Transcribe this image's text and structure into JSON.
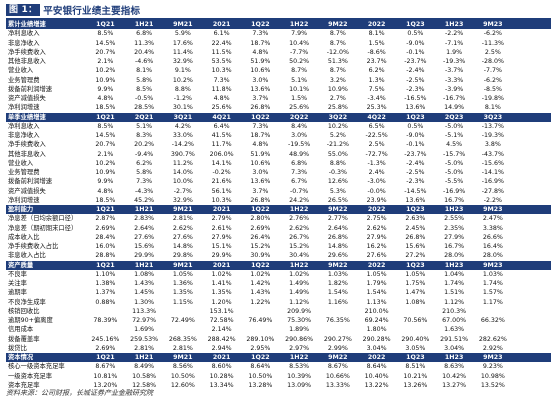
{
  "title": {
    "figure_label": "图 1：",
    "caption": "平安银行业绩主要指标"
  },
  "sections": [
    {
      "header": [
        "累计业绩增速",
        "1Q21",
        "1H21",
        "9M21",
        "2021",
        "1Q22",
        "1H22",
        "9M22",
        "2022",
        "1Q23",
        "1H23",
        "9M23"
      ],
      "rows": [
        {
          "label": "净利息收入",
          "indent": 1,
          "values": [
            "8.5%",
            "6.8%",
            "5.9%",
            "6.1%",
            "7.3%",
            "7.9%",
            "8.7%",
            "8.1%",
            "0.5%",
            "-2.2%",
            "-6.2%"
          ]
        },
        {
          "label": "非息净收入",
          "indent": 1,
          "values": [
            "14.5%",
            "11.3%",
            "17.6%",
            "22.4%",
            "18.7%",
            "10.4%",
            "8.7%",
            "1.5%",
            "-9.0%",
            "-7.1%",
            "-11.3%"
          ]
        },
        {
          "label": "净手续费收入",
          "indent": 2,
          "values": [
            "20.7%",
            "20.4%",
            "11.4%",
            "11.5%",
            "4.8%",
            "-7.7%",
            "-12.0%",
            "-8.6%",
            "-0.1%",
            "1.9%",
            "2.5%"
          ]
        },
        {
          "label": "其他非息收入",
          "indent": 3,
          "values": [
            "2.1%",
            "-4.6%",
            "32.9%",
            "53.5%",
            "51.9%",
            "50.2%",
            "51.3%",
            "23.7%",
            "-23.7%",
            "-19.3%",
            "-28.0%"
          ]
        },
        {
          "label": "营业收入",
          "indent": 1,
          "values": [
            "10.2%",
            "8.1%",
            "9.1%",
            "10.3%",
            "10.6%",
            "8.7%",
            "8.7%",
            "6.2%",
            "-2.4%",
            "-3.7%",
            "-7.7%"
          ]
        },
        {
          "label": "业务管理费",
          "indent": 1,
          "values": [
            "10.9%",
            "5.8%",
            "10.2%",
            "7.3%",
            "3.0%",
            "5.1%",
            "3.2%",
            "1.3%",
            "-2.5%",
            "-3.3%",
            "-6.2%"
          ]
        },
        {
          "label": "拨备前利润增速",
          "indent": 1,
          "values": [
            "9.9%",
            "8.5%",
            "8.8%",
            "11.8%",
            "13.6%",
            "10.1%",
            "10.9%",
            "7.5%",
            "-2.3%",
            "-3.9%",
            "-8.5%"
          ]
        },
        {
          "label": "资产减值损失",
          "indent": 2,
          "values": [
            "4.8%",
            "-0.5%",
            "-1.2%",
            "4.8%",
            "3.7%",
            "1.5%",
            "2.7%",
            "-3.4%",
            "-16.5%",
            "-16.7%",
            "-19.8%"
          ]
        },
        {
          "label": "净利润增速",
          "indent": 1,
          "values": [
            "18.5%",
            "28.5%",
            "30.1%",
            "25.6%",
            "26.8%",
            "25.6%",
            "25.8%",
            "25.3%",
            "13.6%",
            "14.9%",
            "8.1%"
          ]
        }
      ]
    },
    {
      "header": [
        "单季业绩增速",
        "1Q21",
        "2Q21",
        "3Q21",
        "4Q21",
        "1Q22",
        "2Q22",
        "3Q22",
        "4Q22",
        "1Q23",
        "2Q23",
        "3Q23"
      ],
      "rows": [
        {
          "label": "净利息收入",
          "indent": 1,
          "values": [
            "8.5%",
            "5.1%",
            "4.2%",
            "6.4%",
            "7.3%",
            "8.4%",
            "10.2%",
            "6.5%",
            "0.5%",
            "-5.0%",
            "-13.7%"
          ]
        },
        {
          "label": "非息净收入",
          "indent": 1,
          "values": [
            "14.5%",
            "8.3%",
            "33.0%",
            "41.5%",
            "18.7%",
            "3.0%",
            "5.2%",
            "-22.5%",
            "-9.0%",
            "-5.1%",
            "-19.3%"
          ]
        },
        {
          "label": "净手续费收入",
          "indent": 2,
          "values": [
            "20.7%",
            "20.2%",
            "-14.2%",
            "11.7%",
            "4.8%",
            "-19.5%",
            "-21.2%",
            "2.5%",
            "-0.1%",
            "4.5%",
            "3.8%"
          ]
        },
        {
          "label": "其他非息收入",
          "indent": 3,
          "values": [
            "2.1%",
            "-9.4%",
            "390.7%",
            "206.0%",
            "51.9%",
            "48.9%",
            "55.0%",
            "-72.7%",
            "-23.7%",
            "-15.7%",
            "-43.7%"
          ]
        },
        {
          "label": "营业收入",
          "indent": 1,
          "values": [
            "10.2%",
            "6.2%",
            "11.2%",
            "14.1%",
            "10.6%",
            "6.8%",
            "8.8%",
            "-1.3%",
            "-2.4%",
            "-5.0%",
            "-15.6%"
          ]
        },
        {
          "label": "业务管理费",
          "indent": 1,
          "values": [
            "10.9%",
            "5.8%",
            "14.0%",
            "-0.2%",
            "3.0%",
            "7.3%",
            "-0.3%",
            "2.4%",
            "-2.5%",
            "-5.0%",
            "-14.1%"
          ]
        },
        {
          "label": "拨备前利润增速",
          "indent": 1,
          "values": [
            "9.9%",
            "7.3%",
            "10.0%",
            "21.6%",
            "13.6%",
            "6.7%",
            "12.6%",
            "-3.0%",
            "-2.3%",
            "-5.5%",
            "-16.9%"
          ]
        },
        {
          "label": "资产减值损失",
          "indent": 2,
          "values": [
            "4.8%",
            "-4.3%",
            "-2.7%",
            "56.1%",
            "3.7%",
            "-0.7%",
            "5.3%",
            "-0.0%",
            "-14.5%",
            "-16.9%",
            "-27.8%"
          ]
        },
        {
          "label": "净利润增速",
          "indent": 1,
          "values": [
            "18.5%",
            "45.2%",
            "32.9%",
            "10.3%",
            "26.8%",
            "24.2%",
            "26.5%",
            "23.9%",
            "13.6%",
            "16.7%",
            "-2.2%"
          ]
        }
      ]
    },
    {
      "header": [
        "盈利能力",
        "1Q21",
        "1H21",
        "9M21",
        "2021",
        "1Q22",
        "1H22",
        "9M22",
        "2022",
        "1Q23",
        "1H23",
        "9M23"
      ],
      "rows": [
        {
          "label": "净息差（日均余额口径）",
          "indent": 1,
          "values": [
            "2.87%",
            "2.83%",
            "2.81%",
            "2.79%",
            "2.80%",
            "2.76%",
            "2.77%",
            "2.75%",
            "2.63%",
            "2.55%",
            "2.47%"
          ]
        },
        {
          "label": "净息差（期初期末口径）",
          "indent": 1,
          "values": [
            "2.69%",
            "2.64%",
            "2.62%",
            "2.61%",
            "2.69%",
            "2.62%",
            "2.64%",
            "2.62%",
            "2.45%",
            "2.35%",
            "3.38%"
          ]
        },
        {
          "label": "成本收入比",
          "indent": 1,
          "values": [
            "28.4%",
            "27.6%",
            "27.6%",
            "27.9%",
            "26.4%",
            "26.7%",
            "26.8%",
            "27.9%",
            "26.8%",
            "27.9%",
            "26.6%"
          ]
        },
        {
          "label": "净手续费收入占比",
          "indent": 1,
          "values": [
            "16.0%",
            "15.6%",
            "14.8%",
            "15.1%",
            "15.2%",
            "15.2%",
            "14.8%",
            "16.2%",
            "15.6%",
            "16.7%",
            "16.4%"
          ]
        },
        {
          "label": "非息收入占比",
          "indent": 1,
          "values": [
            "28.8%",
            "29.9%",
            "29.8%",
            "29.9%",
            "30.9%",
            "30.4%",
            "29.6%",
            "27.6%",
            "27.2%",
            "28.0%",
            "28.0%"
          ]
        }
      ]
    },
    {
      "header": [
        "资产质量",
        "1Q21",
        "1H21",
        "9M21",
        "2021",
        "1Q22",
        "1H22",
        "9M22",
        "2022",
        "1Q23",
        "1H23",
        "9M23"
      ],
      "rows": [
        {
          "label": "不良率",
          "indent": 0,
          "values": [
            "1.10%",
            "1.08%",
            "1.05%",
            "1.02%",
            "1.02%",
            "1.02%",
            "1.03%",
            "1.05%",
            "1.05%",
            "1.04%",
            "1.03%"
          ]
        },
        {
          "label": "关注率",
          "indent": 0,
          "values": [
            "1.38%",
            "1.43%",
            "1.36%",
            "1.41%",
            "1.42%",
            "1.49%",
            "1.82%",
            "1.79%",
            "1.75%",
            "1.74%",
            "1.74%"
          ]
        },
        {
          "label": "逾期率",
          "indent": 0,
          "values": [
            "1.37%",
            "1.45%",
            "1.35%",
            "1.35%",
            "1.43%",
            "1.49%",
            "1.54%",
            "1.54%",
            "1.47%",
            "1.51%",
            "1.57%"
          ]
        },
        {
          "label": "不良净生成率",
          "indent": 0,
          "values": [
            "0.88%",
            "1.30%",
            "1.15%",
            "1.20%",
            "1.22%",
            "1.12%",
            "1.16%",
            "1.13%",
            "1.08%",
            "1.12%",
            "1.17%"
          ]
        },
        {
          "label": "核销回收比",
          "indent": 0,
          "values": [
            "",
            "113.3%",
            "",
            "153.1%",
            "",
            "209.9%",
            "",
            "210.0%",
            "",
            "210.3%",
            ""
          ]
        },
        {
          "label": "逾期90+偏离度",
          "indent": 0,
          "values": [
            "78.39%",
            "72.97%",
            "72.49%",
            "72.58%",
            "76.49%",
            "75.30%",
            "76.35%",
            "69.24%",
            "70.56%",
            "67.00%",
            "66.32%"
          ]
        },
        {
          "label": "信用成本",
          "indent": 0,
          "values": [
            "",
            "1.69%",
            "",
            "2.14%",
            "",
            "1.89%",
            "",
            "1.80%",
            "",
            "1.63%",
            ""
          ]
        },
        {
          "label": "拨备覆盖率",
          "indent": 0,
          "values": [
            "245.16%",
            "259.53%",
            "268.35%",
            "288.42%",
            "289.10%",
            "290.86%",
            "290.27%",
            "290.28%",
            "290.40%",
            "291.51%",
            "282.62%"
          ]
        },
        {
          "label": "拨贷比",
          "indent": 0,
          "values": [
            "2.69%",
            "2.81%",
            "2.81%",
            "2.94%",
            "2.95%",
            "2.97%",
            "2.99%",
            "3.04%",
            "3.05%",
            "3.04%",
            "2.92%"
          ]
        }
      ]
    },
    {
      "header": [
        "资本情况",
        "1Q21",
        "1H21",
        "9M21",
        "2021",
        "1Q22",
        "1H22",
        "9M22",
        "2022",
        "1Q23",
        "1H23",
        "9M23"
      ],
      "rows": [
        {
          "label": "核心一级资本充足率",
          "indent": 0,
          "values": [
            "8.67%",
            "8.49%",
            "8.56%",
            "8.60%",
            "8.64%",
            "8.53%",
            "8.67%",
            "8.64%",
            "8.51%",
            "8.63%",
            "9.23%"
          ]
        },
        {
          "label": "一级资本充足率",
          "indent": 0,
          "values": [
            "10.81%",
            "10.58%",
            "10.50%",
            "10.28%",
            "10.50%",
            "10.39%",
            "10.66%",
            "10.40%",
            "10.21%",
            "10.42%",
            "10.98%"
          ]
        },
        {
          "label": "资本充足率",
          "indent": 0,
          "values": [
            "13.20%",
            "12.58%",
            "12.60%",
            "13.34%",
            "13.28%",
            "13.09%",
            "13.33%",
            "13.22%",
            "13.26%",
            "13.27%",
            "13.52%"
          ]
        }
      ]
    }
  ],
  "source": "资料来源：公司财报，长城证券产业金融研究院"
}
